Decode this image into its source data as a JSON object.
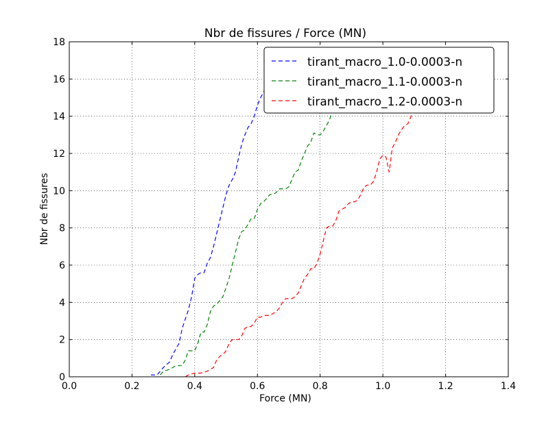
{
  "chart_data": {
    "type": "line",
    "title": "Nbr de fissures / Force (MN)",
    "xlabel": "Force (MN)",
    "ylabel": "Nbr de fissures",
    "xlim": [
      0.0,
      1.4
    ],
    "ylim": [
      0,
      18
    ],
    "xticks": [
      "0.0",
      "0.2",
      "0.4",
      "0.6",
      "0.8",
      "1.0",
      "1.2",
      "1.4"
    ],
    "yticks": [
      "0",
      "2",
      "4",
      "6",
      "8",
      "10",
      "12",
      "14",
      "16",
      "18"
    ],
    "grid": true,
    "line_style": "dashed",
    "legend_position": "top-right",
    "series": [
      {
        "name": "tirant_macro_1.0-0.0003-n",
        "color": "#0000ff",
        "x": [
          0.26,
          0.28,
          0.29,
          0.3,
          0.32,
          0.33,
          0.34,
          0.35,
          0.36,
          0.37,
          0.38,
          0.39,
          0.4,
          0.41,
          0.42,
          0.43,
          0.44,
          0.45,
          0.46,
          0.47,
          0.48,
          0.49,
          0.5,
          0.51,
          0.52,
          0.53,
          0.54,
          0.55,
          0.56,
          0.57,
          0.58,
          0.59,
          0.6,
          0.61,
          0.62,
          0.63,
          0.64,
          0.65,
          0.66,
          0.67,
          0.68,
          0.69
        ],
        "y": [
          0.1,
          0.1,
          0.3,
          0.5,
          0.8,
          1.2,
          1.5,
          1.8,
          2.6,
          3.1,
          3.6,
          4.3,
          5.3,
          5.5,
          5.6,
          5.6,
          6.1,
          6.4,
          7.0,
          7.7,
          8.4,
          9.1,
          9.8,
          10.3,
          10.6,
          11.0,
          11.8,
          12.5,
          13.0,
          13.4,
          13.6,
          14.0,
          14.6,
          15.0,
          15.3,
          15.8,
          16.0,
          16.3,
          16.6,
          17.1,
          17.4,
          17.7
        ]
      },
      {
        "name": "tirant_macro_1.1-0.0003-n",
        "color": "#008000",
        "x": [
          0.29,
          0.3,
          0.32,
          0.34,
          0.36,
          0.37,
          0.38,
          0.39,
          0.4,
          0.41,
          0.42,
          0.43,
          0.44,
          0.45,
          0.46,
          0.47,
          0.48,
          0.49,
          0.5,
          0.51,
          0.52,
          0.53,
          0.54,
          0.55,
          0.56,
          0.57,
          0.58,
          0.59,
          0.6,
          0.61,
          0.62,
          0.63,
          0.64,
          0.65,
          0.66,
          0.67,
          0.68,
          0.69,
          0.7,
          0.71,
          0.72,
          0.73,
          0.74,
          0.75,
          0.76,
          0.77,
          0.78,
          0.79,
          0.8,
          0.81,
          0.82,
          0.83,
          0.84,
          0.85,
          0.86,
          0.87,
          0.88,
          0.89,
          0.9
        ],
        "y": [
          0.1,
          0.3,
          0.4,
          0.6,
          0.6,
          0.9,
          1.4,
          1.4,
          1.4,
          1.8,
          2.4,
          2.4,
          2.8,
          3.5,
          3.8,
          3.9,
          4.1,
          4.3,
          4.8,
          5.3,
          6.0,
          6.7,
          7.4,
          7.8,
          7.9,
          8.2,
          8.5,
          8.5,
          9.0,
          9.3,
          9.4,
          9.6,
          9.8,
          9.8,
          9.9,
          10.1,
          10.1,
          10.1,
          10.2,
          10.6,
          11.0,
          11.1,
          11.6,
          12.0,
          12.4,
          12.6,
          13.1,
          13.0,
          13.0,
          13.2,
          13.5,
          13.8,
          14.4,
          14.6,
          14.6,
          15.2,
          15.1,
          15.3,
          15.6
        ]
      },
      {
        "name": "tirant_macro_1.2-0.0003-n",
        "color": "#ff0000",
        "x": [
          0.37,
          0.38,
          0.4,
          0.42,
          0.44,
          0.45,
          0.46,
          0.47,
          0.48,
          0.49,
          0.5,
          0.51,
          0.52,
          0.53,
          0.54,
          0.55,
          0.56,
          0.57,
          0.58,
          0.59,
          0.6,
          0.61,
          0.62,
          0.63,
          0.64,
          0.65,
          0.66,
          0.67,
          0.68,
          0.69,
          0.7,
          0.71,
          0.72,
          0.73,
          0.74,
          0.75,
          0.76,
          0.77,
          0.78,
          0.79,
          0.8,
          0.81,
          0.82,
          0.83,
          0.84,
          0.85,
          0.86,
          0.87,
          0.88,
          0.89,
          0.9,
          0.91,
          0.92,
          0.93,
          0.94,
          0.95,
          0.96,
          0.97,
          0.98,
          0.99,
          1.0,
          1.01,
          1.02,
          1.03,
          1.04,
          1.05,
          1.06,
          1.07,
          1.08,
          1.09,
          1.1,
          1.11,
          1.12,
          1.13,
          1.14,
          1.15,
          1.16,
          1.17,
          1.18,
          1.19,
          1.2,
          1.21
        ],
        "y": [
          0.0,
          0.1,
          0.2,
          0.2,
          0.3,
          0.4,
          0.5,
          0.9,
          1.1,
          1.2,
          1.4,
          1.8,
          2.0,
          2.0,
          2.0,
          2.2,
          2.6,
          2.7,
          2.7,
          2.9,
          3.2,
          3.2,
          3.3,
          3.3,
          3.3,
          3.4,
          3.5,
          3.7,
          4.0,
          4.2,
          4.2,
          4.2,
          4.3,
          4.5,
          4.9,
          5.3,
          5.5,
          5.8,
          5.8,
          6.1,
          6.6,
          7.3,
          8.0,
          8.1,
          8.1,
          8.4,
          8.9,
          9.0,
          9.1,
          9.3,
          9.4,
          9.4,
          9.5,
          9.8,
          10.2,
          10.3,
          10.3,
          10.5,
          11.0,
          11.7,
          11.9,
          11.8,
          11.0,
          12.3,
          12.6,
          13.0,
          13.3,
          13.5,
          13.6,
          14.0,
          14.5,
          14.8,
          15.4,
          15.6,
          16.0,
          16.3,
          16.7,
          16.5,
          16.2,
          15.8,
          15.6,
          15.5
        ]
      }
    ]
  }
}
